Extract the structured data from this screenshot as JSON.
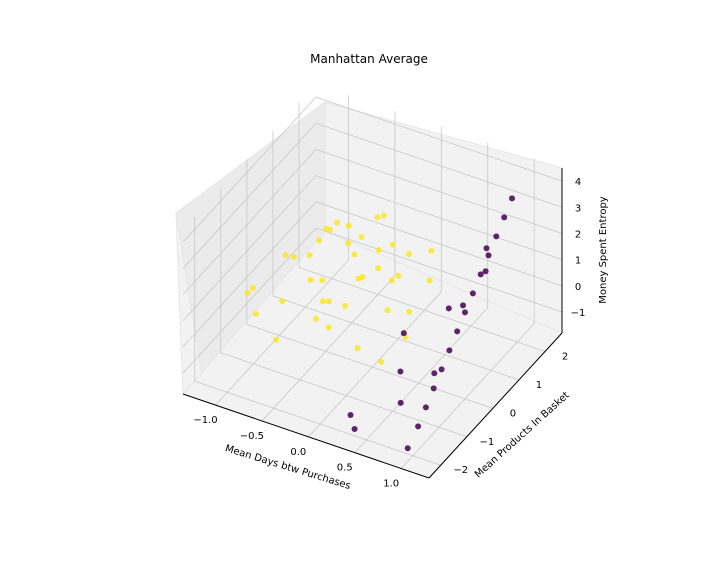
{
  "chart_data": {
    "type": "scatter",
    "projection": "3d",
    "title": "Manhattan Average",
    "xlabel": "Mean Days btw Purchases",
    "ylabel": "Mean Products In Basket",
    "zlabel": "Money Spent Entropy",
    "xlim": [
      -1.35,
      1.3
    ],
    "ylim": [
      -2.45,
      2.65
    ],
    "zlim": [
      -1.8,
      4.5
    ],
    "xticks": [
      "−1.0",
      "−0.5",
      "0.0",
      "0.5",
      "1.0"
    ],
    "yticks": [
      "−2",
      "−1",
      "0",
      "1",
      "2"
    ],
    "zticks": [
      "−1",
      "0",
      "1",
      "2",
      "3",
      "4"
    ],
    "grid": true,
    "colors": {
      "cluster_a": "#440154",
      "cluster_b": "#fde725",
      "pane": "#f2f2f2",
      "pane_dark": "#ebebeb",
      "grid": "#c8c8c8"
    },
    "series": [
      {
        "color": "#fde725",
        "points": [
          [
            -1.2,
            -0.3,
            0.1
          ],
          [
            -1.1,
            0.6,
            0.5
          ],
          [
            -1.0,
            -0.9,
            0.0
          ],
          [
            -0.9,
            0.2,
            1.1
          ],
          [
            -0.8,
            -0.6,
            0.4
          ],
          [
            -0.75,
            0.9,
            1.6
          ],
          [
            -0.7,
            -1.2,
            -0.3
          ],
          [
            -0.6,
            0.1,
            2.2
          ],
          [
            -0.55,
            -0.4,
            1.3
          ],
          [
            -0.5,
            1.1,
            0.7
          ],
          [
            -0.45,
            -0.8,
            2.8
          ],
          [
            -0.4,
            0.5,
            1.9
          ],
          [
            -0.35,
            -0.1,
            3.4
          ],
          [
            -0.3,
            1.3,
            0.2
          ],
          [
            -0.25,
            -1.0,
            1.5
          ],
          [
            -0.2,
            0.3,
            2.6
          ],
          [
            -0.15,
            -0.5,
            0.9
          ],
          [
            -0.1,
            0.8,
            3.0
          ],
          [
            -0.05,
            -0.2,
            1.8
          ],
          [
            0.0,
            1.0,
            0.6
          ],
          [
            0.05,
            -0.7,
            2.4
          ],
          [
            0.1,
            0.4,
            1.2
          ],
          [
            0.15,
            -1.1,
            0.3
          ],
          [
            0.2,
            0.7,
            2.0
          ],
          [
            0.25,
            -0.3,
            1.0
          ],
          [
            0.3,
            1.2,
            1.7
          ],
          [
            0.35,
            -0.9,
            -0.2
          ],
          [
            0.4,
            0.0,
            0.8
          ],
          [
            0.45,
            0.6,
            1.4
          ],
          [
            0.5,
            -0.5,
            0.5
          ],
          [
            -0.65,
            0.4,
            0.3
          ],
          [
            -0.55,
            -0.2,
            -0.4
          ],
          [
            -0.45,
            0.7,
            2.3
          ],
          [
            -0.3,
            -0.6,
            0.0
          ],
          [
            -0.2,
            1.5,
            1.0
          ],
          [
            -0.1,
            -1.3,
            2.0
          ],
          [
            0.0,
            0.2,
            3.7
          ],
          [
            0.1,
            -0.1,
            2.9
          ],
          [
            -0.85,
            1.4,
            0.9
          ],
          [
            -0.95,
            -1.4,
            1.4
          ]
        ]
      },
      {
        "color": "#440154",
        "points": [
          [
            1.0,
            -2.2,
            -1.3
          ],
          [
            1.0,
            -1.8,
            -0.9
          ],
          [
            1.0,
            -1.5,
            -0.5
          ],
          [
            1.0,
            -1.2,
            -0.1
          ],
          [
            1.0,
            -0.9,
            0.3
          ],
          [
            1.0,
            -0.6,
            0.7
          ],
          [
            1.0,
            -0.3,
            1.1
          ],
          [
            1.0,
            0.0,
            1.5
          ],
          [
            1.0,
            0.3,
            1.9
          ],
          [
            1.0,
            0.6,
            2.3
          ],
          [
            1.0,
            0.9,
            2.7
          ],
          [
            1.0,
            1.2,
            3.1
          ],
          [
            1.0,
            1.5,
            3.5
          ],
          [
            1.0,
            1.8,
            3.9
          ],
          [
            0.95,
            -1.0,
            0.2
          ],
          [
            0.95,
            0.1,
            1.6
          ],
          [
            0.95,
            1.0,
            2.8
          ],
          [
            0.7,
            -1.4,
            -0.8
          ],
          [
            0.5,
            -0.7,
            -0.6
          ],
          [
            0.3,
            -1.9,
            -1.2
          ],
          [
            0.6,
            0.8,
            0.3
          ],
          [
            0.8,
            1.5,
            1.2
          ],
          [
            0.2,
            0.5,
            -0.8
          ],
          [
            0.4,
            -2.1,
            -1.4
          ]
        ]
      }
    ]
  }
}
